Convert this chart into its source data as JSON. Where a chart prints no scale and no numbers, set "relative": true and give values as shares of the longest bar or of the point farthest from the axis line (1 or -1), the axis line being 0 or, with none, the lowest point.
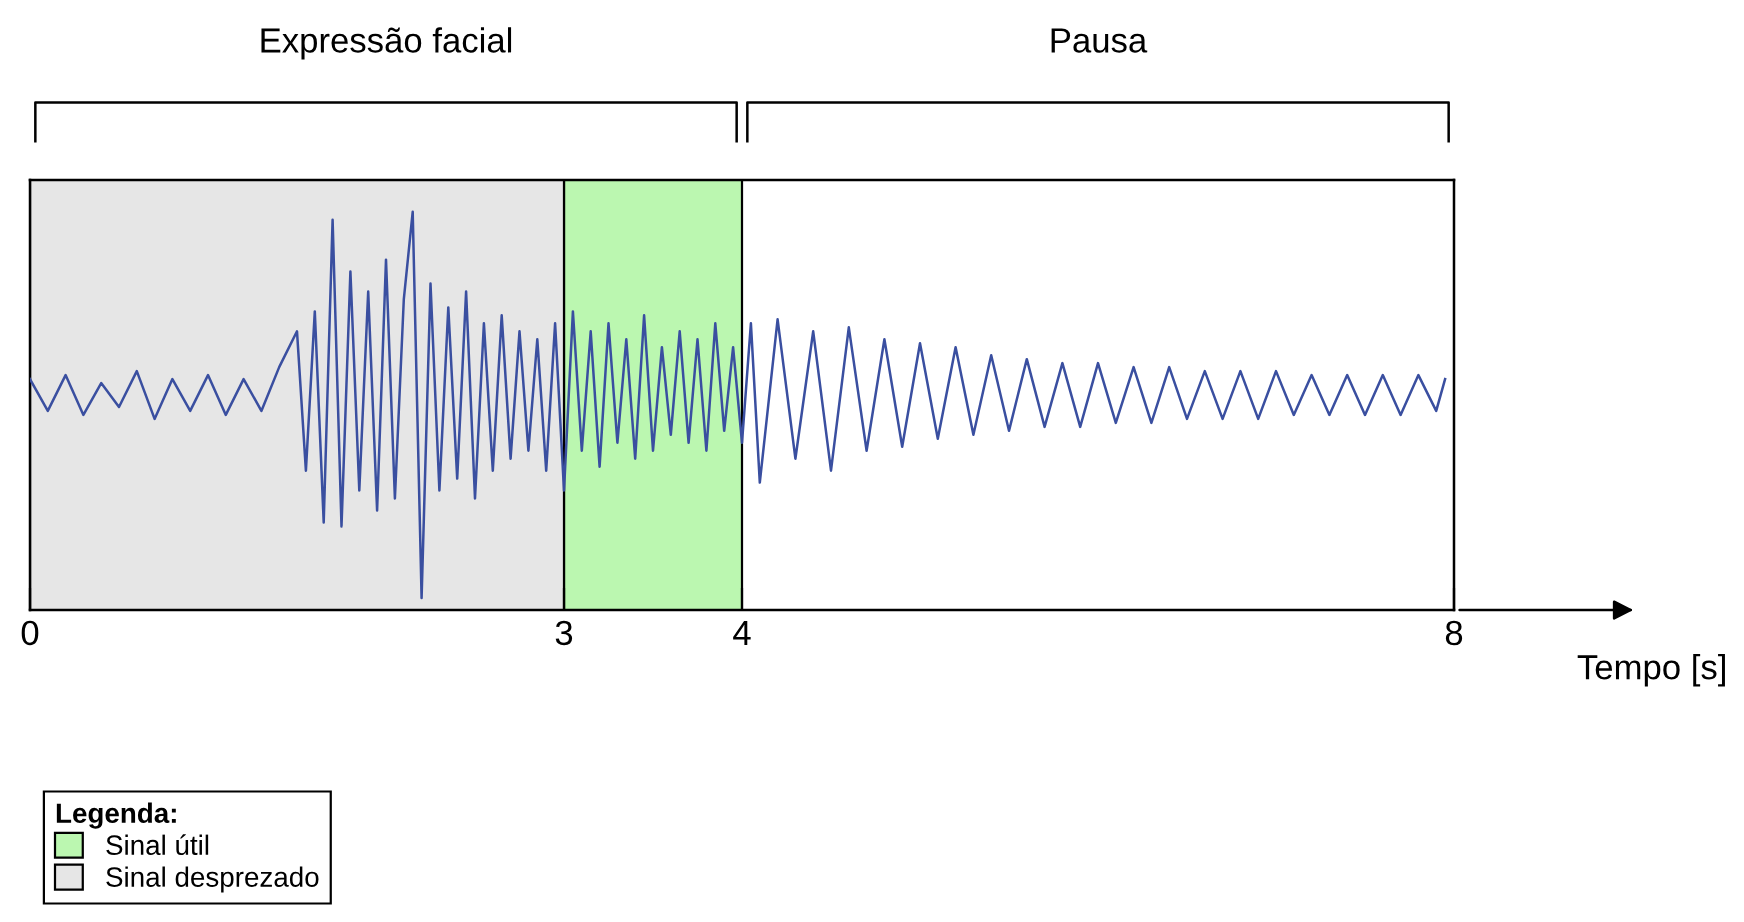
{
  "chart_data": {
    "type": "line",
    "relative": true,
    "xlabel": "Tempo [s]",
    "xlim": [
      0,
      8
    ],
    "xticks": [
      0,
      3,
      4,
      8
    ],
    "grid": false,
    "legend": "bottom left",
    "legend_title": "Legenda:",
    "marker": "none",
    "line_style": "solid",
    "bands": [
      {
        "axis": "x",
        "from": 3,
        "to": 4,
        "color": "#bbf7b0",
        "label": "Sinal útil"
      },
      {
        "axis": "x",
        "from": 0,
        "to": 3,
        "color": "#e6e6e6",
        "label": "Sinal desprezado"
      }
    ],
    "annotations": [
      "Expressão facial",
      "Pausa"
    ],
    "series": [
      {
        "color": "#3a4fa0",
        "x": [
          0,
          0.1,
          0.2,
          0.3,
          0.4,
          0.5,
          0.6,
          0.7,
          0.8,
          0.9,
          1.0,
          1.1,
          1.2,
          1.3,
          1.4,
          1.5,
          1.55,
          1.6,
          1.65,
          1.7,
          1.75,
          1.8,
          1.85,
          1.9,
          1.95,
          2.0,
          2.05,
          2.1,
          2.15,
          2.2,
          2.25,
          2.3,
          2.35,
          2.4,
          2.45,
          2.5,
          2.55,
          2.6,
          2.65,
          2.7,
          2.75,
          2.8,
          2.85,
          2.9,
          2.95,
          3.0,
          3.05,
          3.1,
          3.15,
          3.2,
          3.25,
          3.3,
          3.35,
          3.4,
          3.45,
          3.5,
          3.55,
          3.6,
          3.65,
          3.7,
          3.75,
          3.8,
          3.85,
          3.9,
          3.95,
          4.0,
          4.05,
          4.1,
          4.2,
          4.3,
          4.4,
          4.5,
          4.6,
          4.7,
          4.8,
          4.9,
          5.0,
          5.1,
          5.2,
          5.3,
          5.4,
          5.5,
          5.6,
          5.7,
          5.8,
          5.9,
          6.0,
          6.1,
          6.2,
          6.3,
          6.4,
          6.5,
          6.6,
          6.7,
          6.8,
          6.9,
          7.0,
          7.1,
          7.2,
          7.3,
          7.4,
          7.5,
          7.6,
          7.7,
          7.8,
          7.9,
          7.95
        ],
        "values": [
          0.58,
          0.5,
          0.59,
          0.49,
          0.57,
          0.51,
          0.6,
          0.48,
          0.58,
          0.5,
          0.59,
          0.49,
          0.58,
          0.5,
          0.61,
          0.7,
          0.35,
          0.75,
          0.22,
          0.98,
          0.21,
          0.85,
          0.3,
          0.8,
          0.25,
          0.88,
          0.28,
          0.78,
          1.0,
          0.03,
          0.82,
          0.3,
          0.76,
          0.33,
          0.8,
          0.28,
          0.72,
          0.35,
          0.74,
          0.38,
          0.7,
          0.4,
          0.68,
          0.35,
          0.72,
          0.3,
          0.75,
          0.4,
          0.7,
          0.36,
          0.72,
          0.42,
          0.68,
          0.38,
          0.74,
          0.4,
          0.66,
          0.44,
          0.7,
          0.42,
          0.68,
          0.4,
          0.72,
          0.45,
          0.66,
          0.42,
          0.72,
          0.32,
          0.73,
          0.38,
          0.7,
          0.35,
          0.71,
          0.4,
          0.68,
          0.41,
          0.67,
          0.43,
          0.66,
          0.44,
          0.64,
          0.45,
          0.63,
          0.46,
          0.62,
          0.46,
          0.62,
          0.47,
          0.61,
          0.47,
          0.61,
          0.48,
          0.6,
          0.48,
          0.6,
          0.48,
          0.6,
          0.49,
          0.59,
          0.49,
          0.59,
          0.49,
          0.59,
          0.49,
          0.59,
          0.5,
          0.58
        ]
      }
    ]
  }
}
